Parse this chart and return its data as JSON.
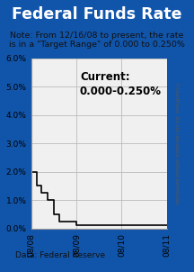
{
  "title": "Federal Funds Rate",
  "note_line1": "Note: From 12/16/08 to present, the rate",
  "note_line2": "is in a \"Target Range\" of 0.000 to 0.250%",
  "data_source": "Data: Federal Reserve",
  "watermark": "©ChartForce  Do not reproduce without permission.",
  "current_label": "Current:\n0.000-0.250%",
  "title_bg_color": "#1155aa",
  "title_text_color": "#ffffff",
  "border_color": "#1155aa",
  "chart_bg_color": "#f0f0f0",
  "line_color": "#000000",
  "grid_color": "#bbbbbb",
  "ylim": [
    0.0,
    6.0
  ],
  "yticks": [
    0.0,
    1.0,
    2.0,
    3.0,
    4.0,
    5.0,
    6.0
  ],
  "ytick_labels": [
    "0.0%",
    "1.0%",
    "2.0%",
    "3.0%",
    "4.0%",
    "5.0%",
    "6.0%"
  ],
  "xtick_positions": [
    0,
    1,
    2,
    3
  ],
  "xtick_labels": [
    "08/08",
    "08/09",
    "08/10",
    "08/11"
  ],
  "step_x": [
    0.0,
    0.12,
    0.22,
    0.37,
    0.5,
    0.62,
    1.0,
    3.0
  ],
  "step_y": [
    2.0,
    1.5,
    1.25,
    1.0,
    0.5,
    0.25,
    0.125,
    0.125
  ]
}
